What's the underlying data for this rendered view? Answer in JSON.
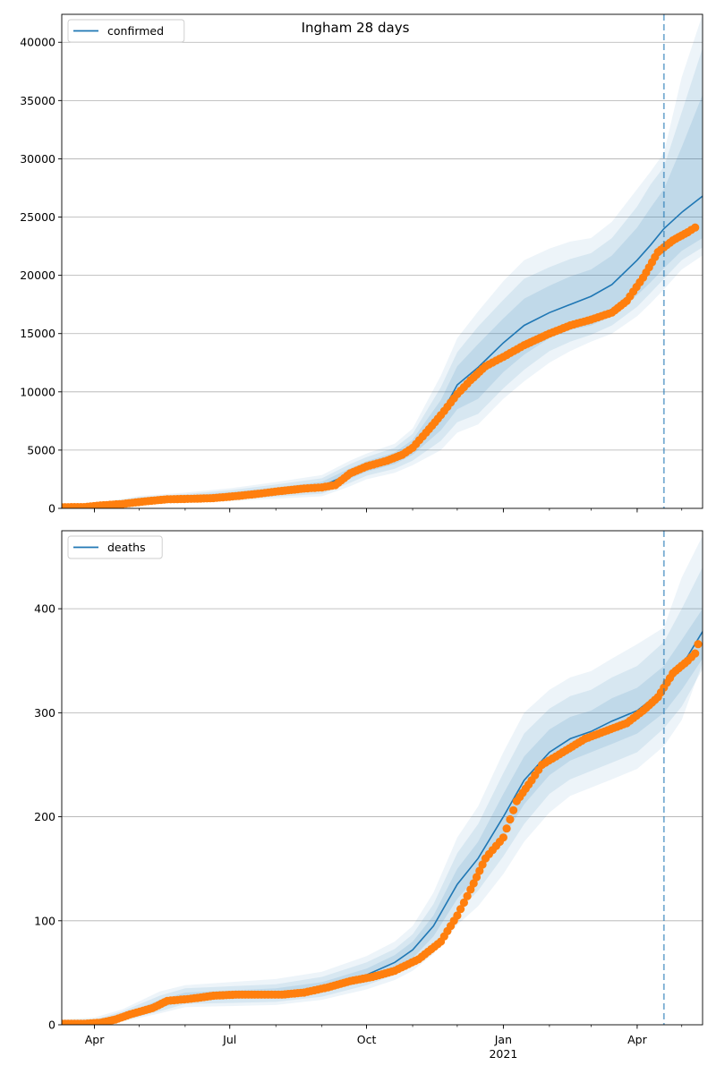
{
  "title": "Ingham 28 days",
  "colors": {
    "model_line": "#1f77b4",
    "band": "#1f77b4",
    "observed": "#ff7f0e",
    "grid": "#b0b0b0",
    "vline": "#1f77b4"
  },
  "x_axis": {
    "tick_labels": [
      "Apr",
      "Jul",
      "Oct",
      "Jan",
      "Apr"
    ],
    "year_label": "2021"
  },
  "chart_data": [
    {
      "type": "line",
      "series_name": "confirmed",
      "legend_label": "confirmed",
      "legend_position": "upper left",
      "grid": "y",
      "ylim": [
        0,
        42400
      ],
      "yticks": [
        0,
        5000,
        10000,
        15000,
        20000,
        25000,
        30000,
        35000,
        40000
      ],
      "ytick_labels": [
        "0",
        "5000",
        "10000",
        "15000",
        "20000",
        "25000",
        "30000",
        "35000",
        "40000"
      ],
      "xlim": [
        "2020-03-10",
        "2021-05-15"
      ],
      "xticks": [
        "2020-04-01",
        "2020-07-01",
        "2020-10-01",
        "2021-01-01",
        "2021-04-01"
      ],
      "forecast_start": "2021-04-19",
      "model": {
        "x": [
          "2020-03-10",
          "2020-04-01",
          "2020-05-01",
          "2020-06-01",
          "2020-07-01",
          "2020-08-01",
          "2020-09-01",
          "2020-09-20",
          "2020-10-01",
          "2020-10-20",
          "2020-11-01",
          "2020-11-20",
          "2020-12-01",
          "2020-12-15",
          "2021-01-01",
          "2021-01-15",
          "2021-02-01",
          "2021-02-15",
          "2021-03-01",
          "2021-03-15",
          "2021-04-01",
          "2021-04-10",
          "2021-04-19",
          "2021-05-01",
          "2021-05-15"
        ],
        "y": [
          50,
          200,
          700,
          900,
          1150,
          1500,
          1900,
          3000,
          3600,
          4300,
          5200,
          8000,
          10600,
          12100,
          14200,
          15700,
          16800,
          17500,
          18200,
          19200,
          21300,
          22600,
          24000,
          25400,
          26800
        ],
        "bands": [
          {
            "lo": [
              30,
              130,
              560,
              720,
              920,
              1200,
              1520,
              2550,
              3150,
              3800,
              4600,
              6700,
              8500,
              9400,
              11700,
              13200,
              14600,
              15300,
              15700,
              16500,
              18300,
              19400,
              20600,
              22100,
              23200
            ],
            "hi": [
              70,
              270,
              840,
              1080,
              1380,
              1800,
              2280,
              3450,
              4050,
              4800,
              5900,
              9300,
              12200,
              14100,
              16300,
              18000,
              19100,
              19900,
              20500,
              21700,
              24100,
              25800,
              27400,
              31000,
              35500
            ]
          },
          {
            "lo": [
              20,
              90,
              440,
              590,
              760,
              1000,
              1260,
              2200,
              2800,
              3400,
              4100,
              5800,
              7400,
              8100,
              10300,
              11900,
              13500,
              14300,
              14900,
              15700,
              17300,
              18500,
              19700,
              21300,
              22400
            ],
            "hi": [
              90,
              330,
              960,
              1220,
              1560,
              2040,
              2580,
              3800,
              4400,
              5200,
              6400,
              10400,
              13400,
              15600,
              17900,
              19700,
              20700,
              21400,
              21900,
              23200,
              25900,
              27800,
              29300,
              34000,
              39500
            ]
          },
          {
            "lo": [
              10,
              60,
              350,
              470,
              620,
              820,
              1040,
              1900,
              2500,
              3050,
              3700,
              5000,
              6500,
              7200,
              9400,
              10900,
              12500,
              13500,
              14300,
              15000,
              16500,
              17600,
              18800,
              20500,
              21700
            ],
            "hi": [
              110,
              390,
              1070,
              1350,
              1720,
              2260,
              2860,
              4100,
              4700,
              5550,
              6850,
              11400,
              14600,
              16900,
              19500,
              21300,
              22300,
              22900,
              23200,
              24600,
              27400,
              28900,
              30500,
              37000,
              42400
            ]
          }
        ]
      },
      "observed": {
        "x": [
          "2020-03-10",
          "2020-03-25",
          "2020-04-05",
          "2020-04-20",
          "2020-05-05",
          "2020-05-20",
          "2020-06-05",
          "2020-06-20",
          "2020-07-05",
          "2020-07-20",
          "2020-08-05",
          "2020-08-20",
          "2020-09-01",
          "2020-09-10",
          "2020-09-20",
          "2020-10-01",
          "2020-10-15",
          "2020-10-25",
          "2020-11-01",
          "2020-11-10",
          "2020-11-20",
          "2020-12-01",
          "2020-12-10",
          "2020-12-20",
          "2021-01-01",
          "2021-01-15",
          "2021-02-01",
          "2021-02-15",
          "2021-03-01",
          "2021-03-15",
          "2021-03-25",
          "2021-04-05",
          "2021-04-15",
          "2021-04-25",
          "2021-05-05",
          "2021-05-10"
        ],
        "y": [
          100,
          110,
          250,
          380,
          600,
          780,
          820,
          880,
          1050,
          1250,
          1500,
          1700,
          1800,
          2000,
          3000,
          3600,
          4100,
          4600,
          5200,
          6500,
          8000,
          9800,
          11000,
          12200,
          13000,
          14000,
          15000,
          15700,
          16200,
          16800,
          17800,
          19800,
          22000,
          23000,
          23700,
          24100
        ]
      }
    },
    {
      "type": "line",
      "series_name": "deaths",
      "legend_label": "deaths",
      "legend_position": "upper left",
      "grid": "y",
      "ylim": [
        0,
        475
      ],
      "yticks": [
        0,
        100,
        200,
        300,
        400
      ],
      "ytick_labels": [
        "0",
        "100",
        "200",
        "300",
        "400"
      ],
      "xlim": [
        "2020-03-10",
        "2021-05-15"
      ],
      "xticks": [
        "2020-04-01",
        "2020-07-01",
        "2020-10-01",
        "2021-01-01",
        "2021-04-01"
      ],
      "forecast_start": "2021-04-19",
      "model": {
        "x": [
          "2020-03-10",
          "2020-04-01",
          "2020-04-20",
          "2020-05-15",
          "2020-06-01",
          "2020-07-01",
          "2020-08-01",
          "2020-09-01",
          "2020-10-01",
          "2020-10-20",
          "2020-11-01",
          "2020-11-15",
          "2020-12-01",
          "2020-12-15",
          "2021-01-01",
          "2021-01-15",
          "2021-02-01",
          "2021-02-15",
          "2021-03-01",
          "2021-03-15",
          "2021-04-01",
          "2021-04-19",
          "2021-05-01",
          "2021-05-15"
        ],
        "y": [
          1,
          2,
          8,
          20,
          27,
          29,
          30,
          36,
          48,
          60,
          72,
          95,
          135,
          160,
          200,
          235,
          262,
          275,
          282,
          292,
          302,
          322,
          345,
          378
        ],
        "bands": [
          {
            "lo": [
              0,
              1,
              6,
              16,
              23,
              25,
              26,
              31,
              42,
              53,
              64,
              85,
              121,
              144,
              180,
              212,
              240,
              254,
              262,
              270,
              280,
              300,
              322,
              352
            ],
            "hi": [
              2,
              3,
              10,
              24,
              31,
              33,
              35,
              41,
              54,
              67,
              80,
              105,
              150,
              176,
              222,
              258,
              284,
              296,
              302,
              314,
              324,
              345,
              370,
              400
            ]
          },
          {
            "lo": [
              0,
              0,
              4,
              13,
              20,
              21,
              22,
              27,
              38,
              48,
              58,
              76,
              108,
              129,
              162,
              193,
              222,
              236,
              244,
              252,
              262,
              285,
              306,
              342
            ],
            "hi": [
              4,
              5,
              13,
              28,
              35,
              37,
              39,
              46,
              60,
              73,
              87,
              116,
              165,
              193,
              242,
              280,
              304,
              316,
              322,
              334,
              345,
              368,
              400,
              440
            ]
          },
          {
            "lo": [
              0,
              0,
              3,
              11,
              17,
              18,
              19,
              24,
              34,
              43,
              52,
              68,
              96,
              114,
              145,
              176,
              204,
              220,
              228,
              236,
              246,
              268,
              293,
              348
            ],
            "hi": [
              5,
              7,
              15,
              32,
              38,
              41,
              44,
              51,
              66,
              80,
              95,
              127,
              180,
              210,
              262,
              300,
              322,
              334,
              340,
              352,
              366,
              382,
              430,
              470
            ]
          }
        ]
      },
      "observed": {
        "x": [
          "2020-03-10",
          "2020-03-25",
          "2020-04-05",
          "2020-04-15",
          "2020-04-25",
          "2020-05-10",
          "2020-05-20",
          "2020-06-05",
          "2020-06-20",
          "2020-07-05",
          "2020-07-20",
          "2020-08-05",
          "2020-08-20",
          "2020-09-05",
          "2020-09-20",
          "2020-10-05",
          "2020-10-20",
          "2020-11-05",
          "2020-11-20",
          "2020-12-01",
          "2020-12-10",
          "2020-12-20",
          "2021-01-01",
          "2021-01-10",
          "2021-01-20",
          "2021-01-27",
          "2021-02-10",
          "2021-02-25",
          "2021-03-10",
          "2021-03-25",
          "2021-04-05",
          "2021-04-15",
          "2021-04-25",
          "2021-05-05",
          "2021-05-10",
          "2021-05-12"
        ],
        "y": [
          1,
          1,
          2,
          5,
          10,
          16,
          23,
          25,
          28,
          29,
          29,
          29,
          31,
          36,
          42,
          46,
          52,
          63,
          80,
          105,
          130,
          160,
          180,
          215,
          235,
          250,
          262,
          275,
          282,
          290,
          302,
          315,
          338,
          350,
          357,
          366
        ]
      }
    }
  ]
}
